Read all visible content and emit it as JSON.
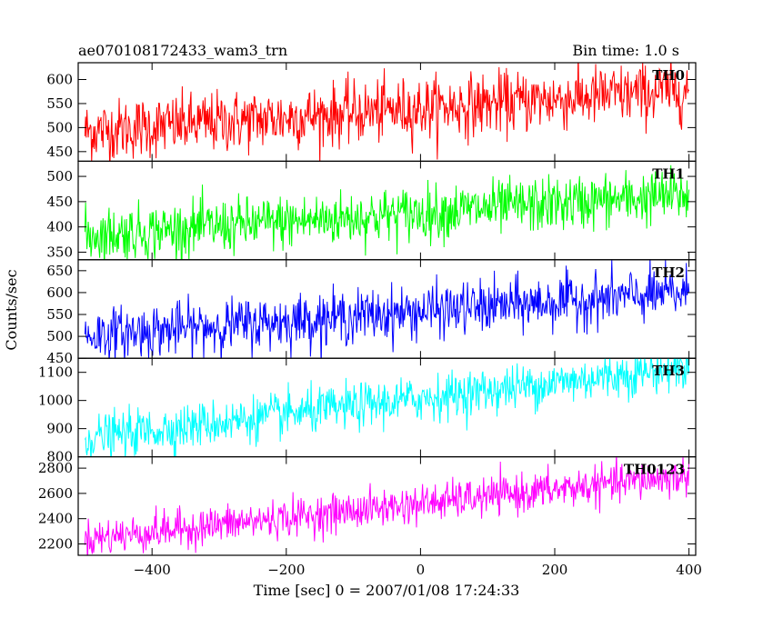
{
  "header": {
    "left": "ae070108172433_wam3_trn",
    "right": "Bin time: 1.0 s"
  },
  "chart_data": {
    "type": "line",
    "xlabel": "Time [sec] 0 = 2007/01/08 17:24:33",
    "ylabel": "Counts/sec",
    "xlim": [
      -510,
      410
    ],
    "xticks": [
      -400,
      -200,
      0,
      200,
      400
    ],
    "x_start": -500,
    "x_end": 400,
    "bin_time": 1.0,
    "panels": [
      {
        "name": "TH0",
        "color": "#ff0000",
        "ylim": [
          430,
          635
        ],
        "yticks": [
          450,
          500,
          550,
          600
        ],
        "trend": [
          -500,
          492,
          400,
          578
        ],
        "noise": 32
      },
      {
        "name": "TH1",
        "color": "#00ff00",
        "ylim": [
          335,
          530
        ],
        "yticks": [
          350,
          400,
          450,
          500
        ],
        "trend": [
          -500,
          383,
          400,
          463
        ],
        "noise": 27
      },
      {
        "name": "TH2",
        "color": "#0000ff",
        "ylim": [
          450,
          675
        ],
        "yticks": [
          450,
          500,
          550,
          600,
          650
        ],
        "trend": [
          -500,
          502,
          400,
          600
        ],
        "noise": 30
      },
      {
        "name": "TH3",
        "color": "#00ffff",
        "ylim": [
          800,
          1150
        ],
        "yticks": [
          800,
          900,
          1000,
          1100
        ],
        "trend": [
          -500,
          865,
          400,
          1120
        ],
        "noise": 40
      },
      {
        "name": "TH0123",
        "color": "#ff00ff",
        "ylim": [
          2110,
          2890
        ],
        "yticks": [
          2200,
          2400,
          2600,
          2800
        ],
        "trend": [
          -500,
          2240,
          400,
          2740
        ],
        "noise": 75
      }
    ]
  }
}
